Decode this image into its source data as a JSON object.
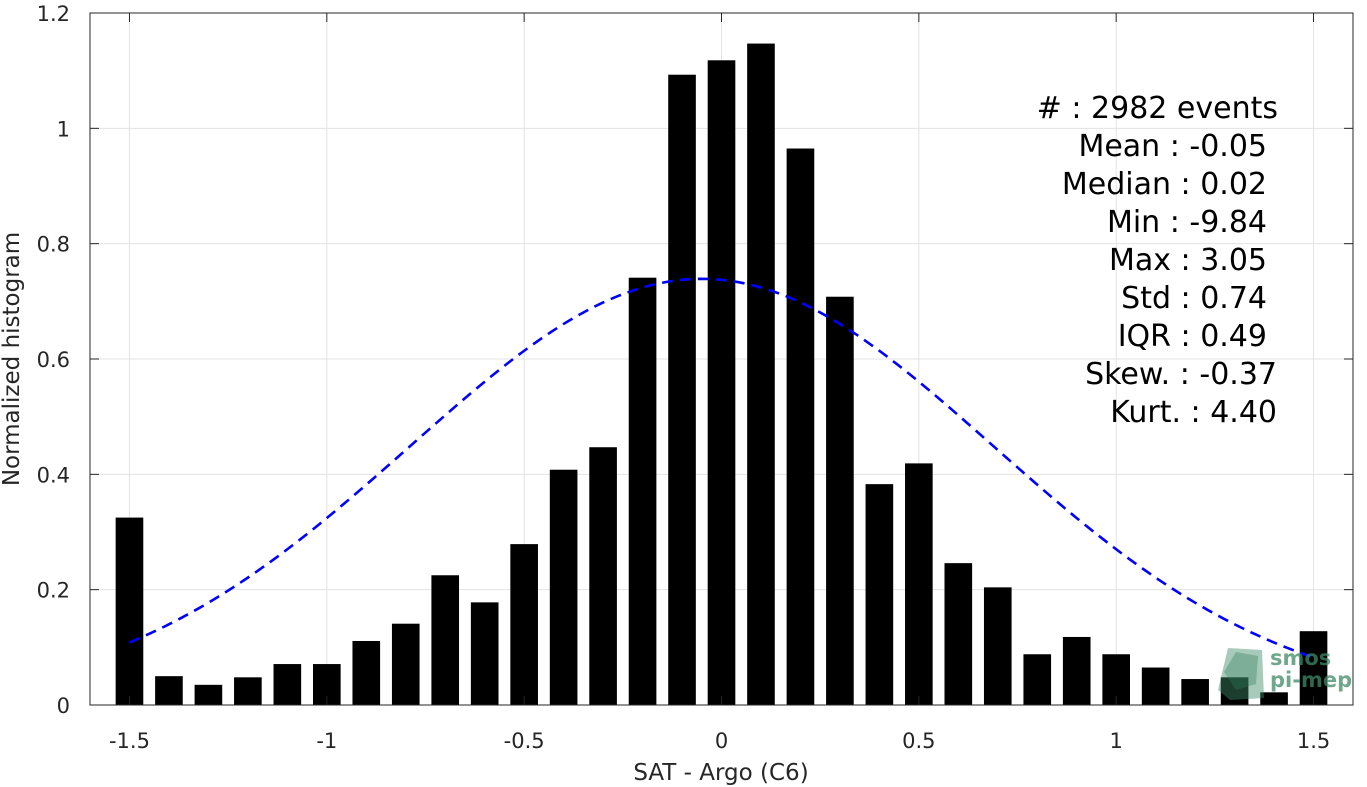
{
  "chart_data": {
    "type": "bar",
    "xlabel": "SAT - Argo (C6)",
    "ylabel": "Normalized histogram",
    "xlim": [
      -1.6,
      1.6
    ],
    "ylim": [
      0,
      1.2
    ],
    "x_ticks": [
      -1.5,
      -1,
      -0.5,
      0,
      0.5,
      1,
      1.5
    ],
    "x_tick_labels": [
      "-1.5",
      "-1",
      "-0.5",
      "0",
      "0.5",
      "1",
      "1.5"
    ],
    "y_ticks": [
      0,
      0.2,
      0.4,
      0.6,
      0.8,
      1,
      1.2
    ],
    "y_tick_labels": [
      "0",
      "0.2",
      "0.4",
      "0.6",
      "0.8",
      "1",
      "1.2"
    ],
    "grid": true,
    "bin_width": 0.1,
    "bar_color": "#000000",
    "series": [
      {
        "x": [
          -1.5,
          -1.4,
          -1.3,
          -1.2,
          -1.1,
          -1.0,
          -0.9,
          -0.8,
          -0.7,
          -0.6,
          -0.5,
          -0.4,
          -0.3,
          -0.2,
          -0.1,
          0.0,
          0.1,
          0.2,
          0.3,
          0.4,
          0.5,
          0.6,
          0.7,
          0.8,
          0.9,
          1.0,
          1.1,
          1.2,
          1.3,
          1.4,
          1.5
        ],
        "values": [
          0.325,
          0.05,
          0.035,
          0.048,
          0.071,
          0.071,
          0.111,
          0.141,
          0.225,
          0.178,
          0.279,
          0.408,
          0.447,
          0.741,
          1.093,
          1.118,
          1.147,
          0.965,
          0.708,
          0.383,
          0.419,
          0.246,
          0.204,
          0.088,
          0.118,
          0.088,
          0.065,
          0.045,
          0.048,
          0.022,
          0.128
        ]
      }
    ],
    "fit_curve": {
      "type": "gaussian",
      "mean": -0.05,
      "std": 0.74,
      "peak": 0.739,
      "x_range": [
        -1.5,
        1.5
      ],
      "color": "#0000ff",
      "style": "dashed"
    },
    "annotations": [
      "#  : 2982 events",
      "Mean : -0.05",
      "Median : 0.02",
      "Min : -9.84",
      "Max : 3.05",
      "Std : 0.74",
      "IQR : 0.49",
      "Skew. : -0.37",
      "Kurt. : 4.40"
    ]
  },
  "logo": {
    "text": [
      "smos",
      "pi-mep"
    ],
    "color": "#3f8a66"
  }
}
